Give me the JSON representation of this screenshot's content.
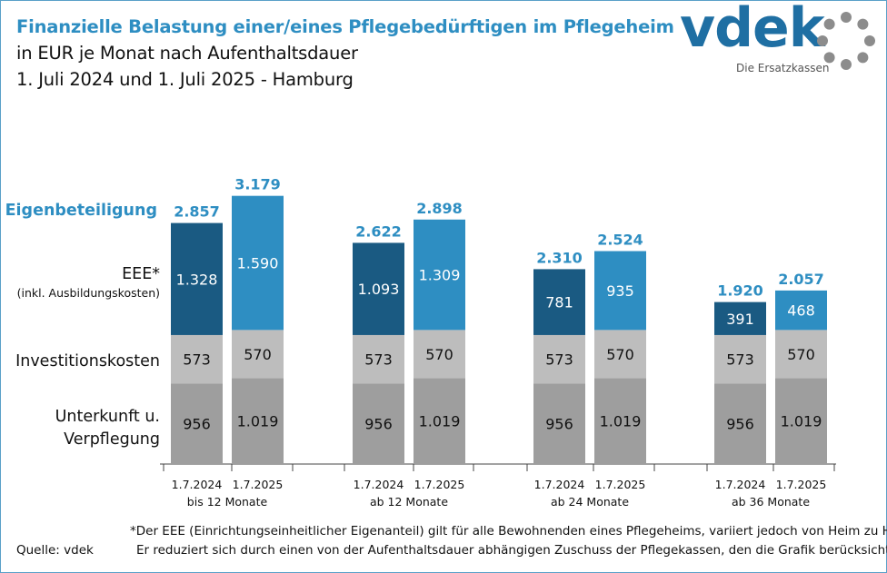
{
  "title": {
    "line1": "Finanzielle Belastung einer/eines Pflegebedürftigen im Pflegeheim",
    "line2": "in EUR je Monat nach Aufenthaltsdauer",
    "line3": "1. Juli 2024 und 1. Juli 2025 - Hamburg"
  },
  "logo": {
    "word": "vdek",
    "tagline": "Die Ersatzkassen"
  },
  "row_labels": {
    "eigenbeteiligung": "Eigenbeteiligung",
    "eee": "EEE*",
    "eee_sub": "(inkl. Ausbildungskosten)",
    "investition": "Investitionskosten",
    "unterkunft_line1": "Unterkunft u.",
    "unterkunft_line2": "Verpflegung"
  },
  "colors": {
    "title": "#2e8ec2",
    "eee_2024": "#1a5a82",
    "eee_2025": "#2e8ec2",
    "investition": "#bdbdbd",
    "unterkunft": "#9e9e9e",
    "total_label": "#2e8ec2",
    "logo": "#1f6fa3"
  },
  "chart_data": {
    "type": "bar",
    "stacked": true,
    "groups": [
      {
        "group_label": "bis 12 Monate",
        "bars": [
          {
            "date": "1.7.2024",
            "total": "2.857",
            "unterkunft": 956,
            "investition": 573,
            "eee": 1328,
            "labels": {
              "unterkunft": "956",
              "investition": "573",
              "eee": "1.328"
            }
          },
          {
            "date": "1.7.2025",
            "total": "3.179",
            "unterkunft": 1019,
            "investition": 570,
            "eee": 1590,
            "labels": {
              "unterkunft": "1.019",
              "investition": "570",
              "eee": "1.590"
            }
          }
        ]
      },
      {
        "group_label": "ab 12 Monate",
        "bars": [
          {
            "date": "1.7.2024",
            "total": "2.622",
            "unterkunft": 956,
            "investition": 573,
            "eee": 1093,
            "labels": {
              "unterkunft": "956",
              "investition": "573",
              "eee": "1.093"
            }
          },
          {
            "date": "1.7.2025",
            "total": "2.898",
            "unterkunft": 1019,
            "investition": 570,
            "eee": 1309,
            "labels": {
              "unterkunft": "1.019",
              "investition": "570",
              "eee": "1.309"
            }
          }
        ]
      },
      {
        "group_label": "ab 24 Monate",
        "bars": [
          {
            "date": "1.7.2024",
            "total": "2.310",
            "unterkunft": 956,
            "investition": 573,
            "eee": 781,
            "labels": {
              "unterkunft": "956",
              "investition": "573",
              "eee": "781"
            }
          },
          {
            "date": "1.7.2025",
            "total": "2.524",
            "unterkunft": 1019,
            "investition": 570,
            "eee": 935,
            "labels": {
              "unterkunft": "1.019",
              "investition": "570",
              "eee": "935"
            }
          }
        ]
      },
      {
        "group_label": "ab 36 Monate",
        "bars": [
          {
            "date": "1.7.2024",
            "total": "1.920",
            "unterkunft": 956,
            "investition": 573,
            "eee": 391,
            "labels": {
              "unterkunft": "956",
              "investition": "573",
              "eee": "391"
            }
          },
          {
            "date": "1.7.2025",
            "total": "2.057",
            "unterkunft": 1019,
            "investition": 570,
            "eee": 468,
            "labels": {
              "unterkunft": "1.019",
              "investition": "570",
              "eee": "468"
            }
          }
        ]
      }
    ],
    "legend": "none (row labels on left)",
    "grid": false
  },
  "footnote": {
    "line1": "*Der EEE (Einrichtungseinheitlicher Eigenanteil) gilt für alle Bewohnenden eines Pflegeheims, variiert jedoch von Heim zu Heim.",
    "line2": "Er reduziert sich durch einen von der Aufenthaltsdauer abhängigen Zuschuss der Pflegekassen, den die Grafik berücksichtigt."
  },
  "source": "Quelle: vdek"
}
